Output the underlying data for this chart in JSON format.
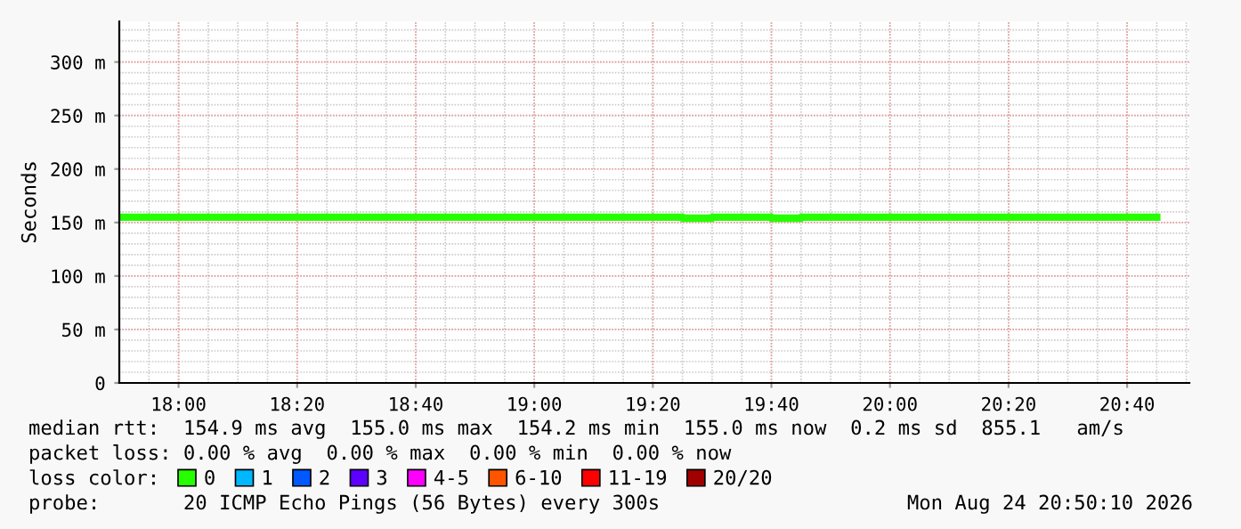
{
  "chart_data": {
    "type": "step",
    "ylabel": "Seconds",
    "x": [
      "2026-08-24T17:50",
      "2026-08-24T17:55",
      "2026-08-24T18:00",
      "2026-08-24T18:05",
      "2026-08-24T18:10",
      "2026-08-24T18:15",
      "2026-08-24T18:20",
      "2026-08-24T18:25",
      "2026-08-24T18:30",
      "2026-08-24T18:35",
      "2026-08-24T18:40",
      "2026-08-24T18:45",
      "2026-08-24T18:50",
      "2026-08-24T18:55",
      "2026-08-24T19:00",
      "2026-08-24T19:05",
      "2026-08-24T19:10",
      "2026-08-24T19:15",
      "2026-08-24T19:20",
      "2026-08-24T19:25",
      "2026-08-24T19:30",
      "2026-08-24T19:35",
      "2026-08-24T19:40",
      "2026-08-24T19:45",
      "2026-08-24T19:50",
      "2026-08-24T19:55",
      "2026-08-24T20:00",
      "2026-08-24T20:05",
      "2026-08-24T20:10",
      "2026-08-24T20:15",
      "2026-08-24T20:20",
      "2026-08-24T20:25",
      "2026-08-24T20:30",
      "2026-08-24T20:35",
      "2026-08-24T20:40",
      "2026-08-24T20:45"
    ],
    "series": [
      {
        "name": "0",
        "color": "#26ff00",
        "values": [
          155,
          155,
          155,
          155,
          155,
          155,
          155,
          155,
          155,
          155,
          155,
          155,
          155,
          155,
          155,
          155,
          155,
          155,
          155,
          154,
          155,
          155,
          154,
          155,
          155,
          155,
          155,
          155,
          155,
          155,
          155,
          155,
          155,
          155,
          155,
          155
        ]
      },
      {
        "name": "1",
        "color": "#00b8ff",
        "values": [
          null,
          null,
          null,
          null,
          null,
          null,
          null,
          null,
          null,
          null,
          null,
          null,
          null,
          null,
          null,
          null,
          null,
          null,
          null,
          null,
          null,
          null,
          null,
          null,
          null,
          null,
          null,
          null,
          null,
          null,
          null,
          null,
          null,
          null,
          null,
          null
        ]
      },
      {
        "name": "2",
        "color": "#0059ff",
        "values": [
          null,
          null,
          null,
          null,
          null,
          null,
          null,
          null,
          null,
          null,
          null,
          null,
          null,
          null,
          null,
          null,
          null,
          null,
          null,
          null,
          null,
          null,
          null,
          null,
          null,
          null,
          null,
          null,
          null,
          null,
          null,
          null,
          null,
          null,
          null,
          null
        ]
      },
      {
        "name": "3",
        "color": "#5e00ff",
        "values": [
          null,
          null,
          null,
          null,
          null,
          null,
          null,
          null,
          null,
          null,
          null,
          null,
          null,
          null,
          null,
          null,
          null,
          null,
          null,
          null,
          null,
          null,
          null,
          null,
          null,
          null,
          null,
          null,
          null,
          null,
          null,
          null,
          null,
          null,
          null,
          null
        ]
      },
      {
        "name": "4-5",
        "color": "#ff00ff",
        "values": [
          null,
          null,
          null,
          null,
          null,
          null,
          null,
          null,
          null,
          null,
          null,
          null,
          null,
          null,
          null,
          null,
          null,
          null,
          null,
          null,
          null,
          null,
          null,
          null,
          null,
          null,
          null,
          null,
          null,
          null,
          null,
          null,
          null,
          null,
          null,
          null
        ]
      },
      {
        "name": "6-10",
        "color": "#ff5500",
        "values": [
          null,
          null,
          null,
          null,
          null,
          null,
          null,
          null,
          null,
          null,
          null,
          null,
          null,
          null,
          null,
          null,
          null,
          null,
          null,
          null,
          null,
          null,
          null,
          null,
          null,
          null,
          null,
          null,
          null,
          null,
          null,
          null,
          null,
          null,
          null,
          null
        ]
      },
      {
        "name": "11-19",
        "color": "#ff0000",
        "values": [
          null,
          null,
          null,
          null,
          null,
          null,
          null,
          null,
          null,
          null,
          null,
          null,
          null,
          null,
          null,
          null,
          null,
          null,
          null,
          null,
          null,
          null,
          null,
          null,
          null,
          null,
          null,
          null,
          null,
          null,
          null,
          null,
          null,
          null,
          null,
          null
        ]
      },
      {
        "name": "20/20",
        "color": "#a10000",
        "values": [
          null,
          null,
          null,
          null,
          null,
          null,
          null,
          null,
          null,
          null,
          null,
          null,
          null,
          null,
          null,
          null,
          null,
          null,
          null,
          null,
          null,
          null,
          null,
          null,
          null,
          null,
          null,
          null,
          null,
          null,
          null,
          null,
          null,
          null,
          null,
          null
        ]
      }
    ],
    "xlim": [
      "2026-08-24T17:50",
      "2026-08-24T20:50:30"
    ],
    "xticks": [
      {
        "value": "2026-08-24T18:00",
        "label": "18:00"
      },
      {
        "value": "2026-08-24T18:20",
        "label": "18:20"
      },
      {
        "value": "2026-08-24T18:40",
        "label": "18:40"
      },
      {
        "value": "2026-08-24T19:00",
        "label": "19:00"
      },
      {
        "value": "2026-08-24T19:20",
        "label": "19:20"
      },
      {
        "value": "2026-08-24T19:40",
        "label": "19:40"
      },
      {
        "value": "2026-08-24T20:00",
        "label": "20:00"
      },
      {
        "value": "2026-08-24T20:20",
        "label": "20:20"
      },
      {
        "value": "2026-08-24T20:40",
        "label": "20:40"
      }
    ],
    "ylim": [
      0,
      338
    ],
    "yticks": [
      0,
      {
        "value": 50,
        "label": "50 m"
      },
      {
        "value": 100,
        "label": "100 m"
      },
      {
        "value": 150,
        "label": "150 m"
      },
      {
        "value": 200,
        "label": "200 m"
      },
      {
        "value": 250,
        "label": "250 m"
      },
      {
        "value": 300,
        "label": "300 m"
      }
    ],
    "grid": true,
    "legend": "bottom",
    "legend_title": "loss color:",
    "annotations": [
      "median rtt:  154.9 ms avg  155.0 ms max  154.2 ms min  155.0 ms now  0.2 ms sd  855.1   am/s",
      "packet loss: 0.00 % avg  0.00 % max  0.00 % min  0.00 % now",
      "probe:       20 ICMP Echo Pings (56 Bytes) every 300s",
      "Mon Aug 24 20:50:10 2026"
    ]
  }
}
